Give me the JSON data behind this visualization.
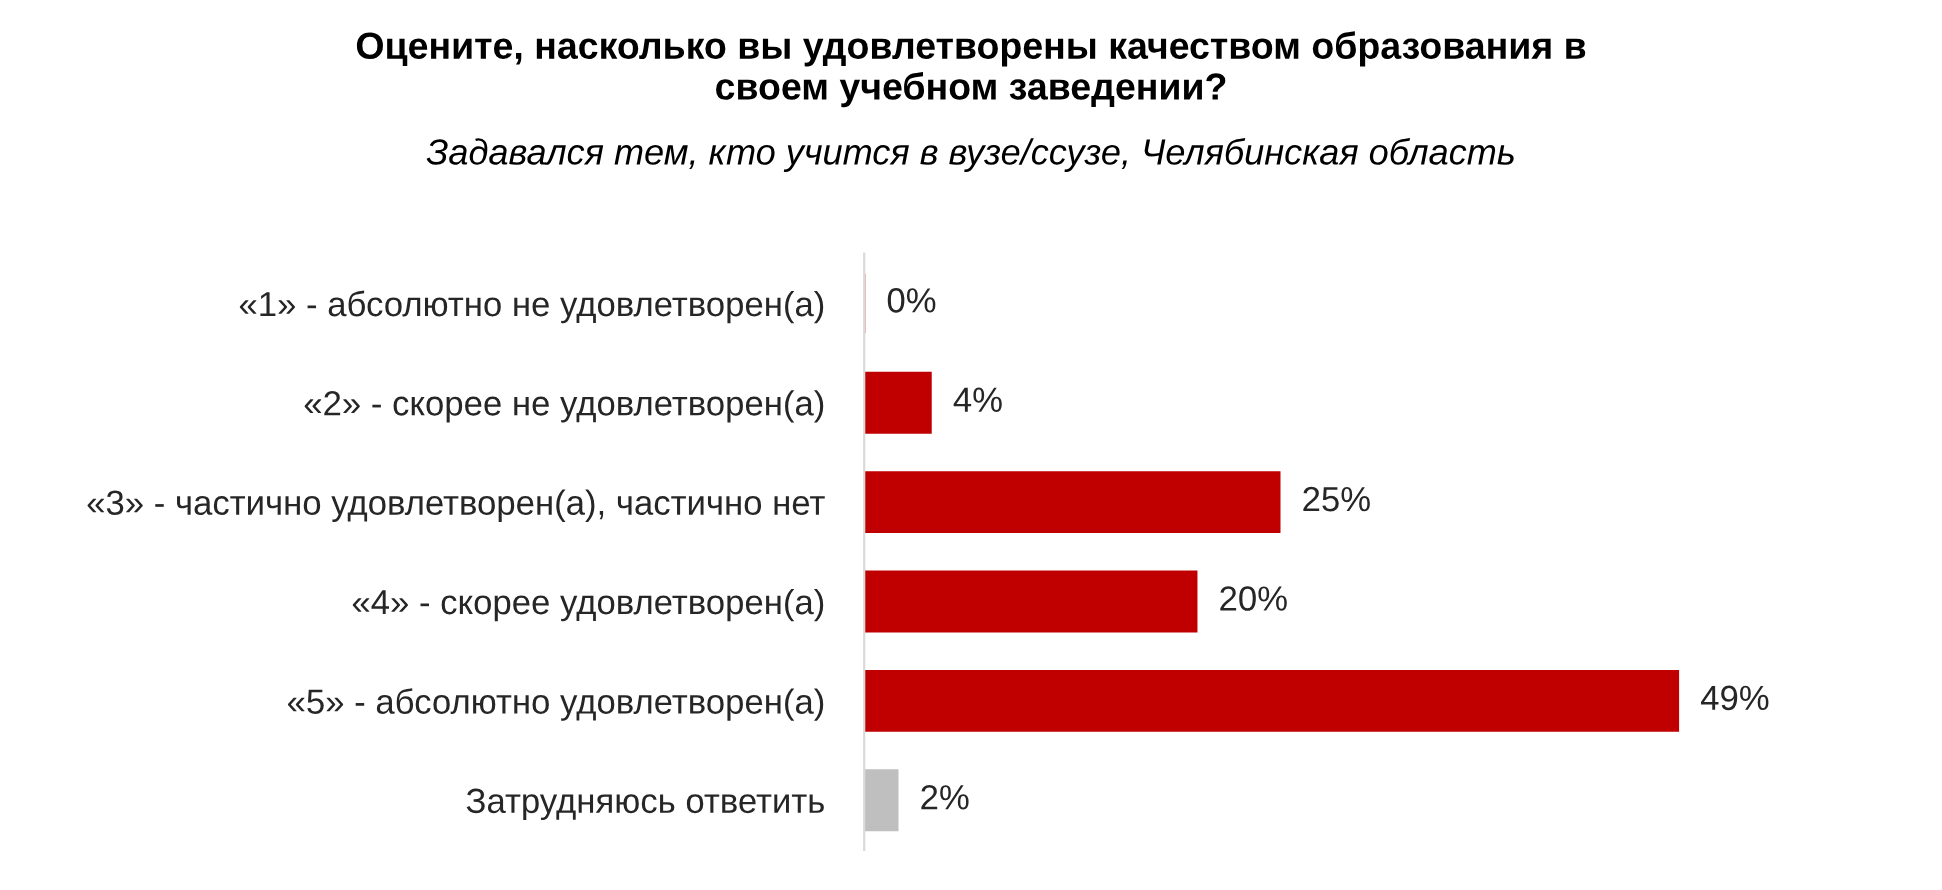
{
  "chart_data": {
    "type": "bar",
    "orientation": "horizontal",
    "title": "Оцените, насколько вы удовлетворены качеством образования в\nсвоем учебном заведении?",
    "subtitle": "Задавался тем, кто учится в вузе/ссузе, Челябинская область",
    "categories": [
      "«1» - абсолютно не удовлетворен(а)",
      "«2» - скорее не удовлетворен(а)",
      "«3» - частично удовлетворен(а), частично нет",
      "«4» - скорее удовлетворен(а)",
      "«5» - абсолютно удовлетворен(а)",
      "Затрудняюсь ответить"
    ],
    "values": [
      0,
      4,
      25,
      20,
      49,
      2
    ],
    "colors": [
      "#c00000",
      "#c00000",
      "#c00000",
      "#c00000",
      "#c00000",
      "#bfbfbf"
    ],
    "value_labels": [
      "0%",
      "4%",
      "25%",
      "20%",
      "49%",
      "2%"
    ],
    "grid": false,
    "legend": false
  }
}
